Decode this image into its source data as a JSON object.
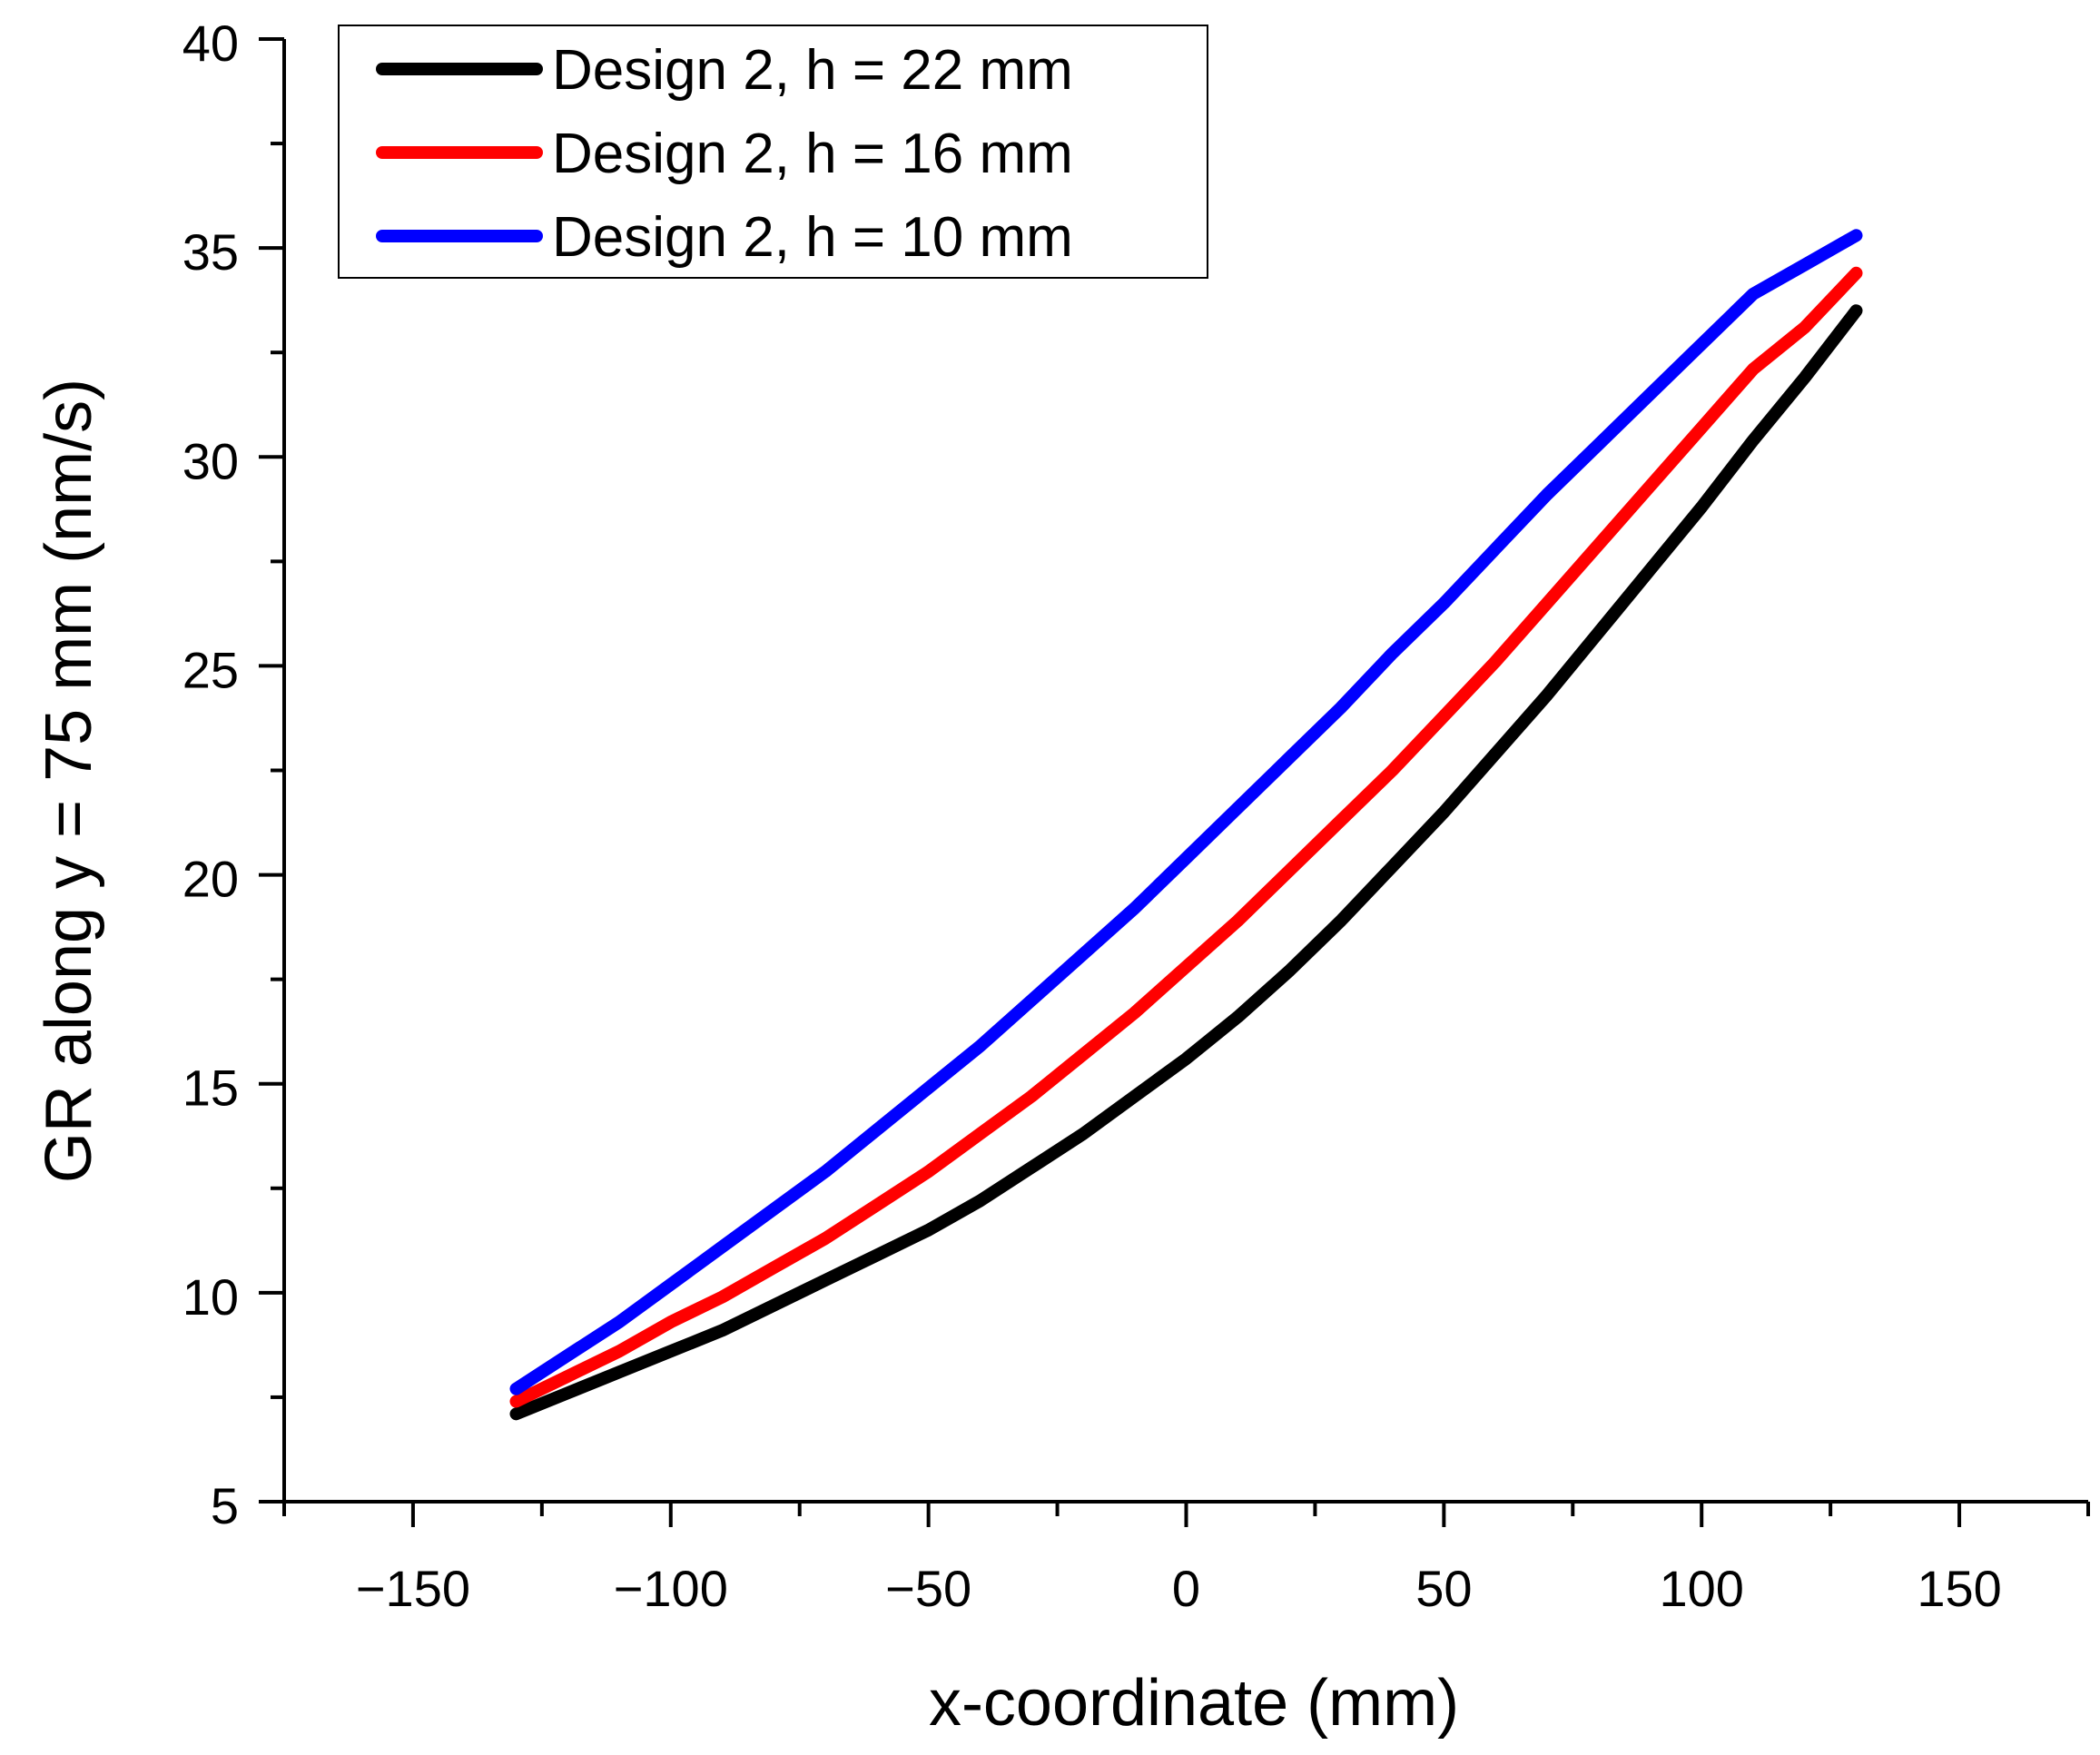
{
  "chart_data": {
    "type": "line",
    "title": "",
    "xlabel": "x-coordinate (mm)",
    "ylabel": "GR along y = 75 mm (nm/s)",
    "xlim": [
      -175,
      175
    ],
    "ylim": [
      5,
      40
    ],
    "xticks": [
      -150,
      -100,
      -50,
      0,
      50,
      100,
      150
    ],
    "xtick_labels": [
      "−150",
      "−100",
      "−50",
      "0",
      "50",
      "100",
      "150"
    ],
    "x_minor_step": 25,
    "yticks": [
      5,
      10,
      15,
      20,
      25,
      30,
      35,
      40
    ],
    "ytick_labels": [
      "5",
      "10",
      "15",
      "20",
      "25",
      "30",
      "35",
      "40"
    ],
    "y_minor_step": 2.5,
    "grid": false,
    "legend_position": "top-left",
    "x": [
      -130,
      -120,
      -110,
      -100,
      -90,
      -80,
      -70,
      -60,
      -50,
      -40,
      -30,
      -20,
      -10,
      0,
      10,
      20,
      30,
      40,
      50,
      60,
      70,
      80,
      90,
      100,
      110,
      120,
      130
    ],
    "series": [
      {
        "name": "Design 2, h = 22 mm",
        "color": "#000000",
        "values": [
          7.1,
          7.6,
          8.1,
          8.6,
          9.1,
          9.7,
          10.3,
          10.9,
          11.5,
          12.2,
          13.0,
          13.8,
          14.7,
          15.6,
          16.6,
          17.7,
          18.9,
          20.2,
          21.5,
          22.9,
          24.3,
          25.8,
          27.3,
          28.8,
          30.4,
          31.9,
          33.5
        ]
      },
      {
        "name": "Design 2, h = 16 mm",
        "color": "#ff0000",
        "values": [
          7.4,
          8.0,
          8.6,
          9.3,
          9.9,
          10.6,
          11.3,
          12.1,
          12.9,
          13.8,
          14.7,
          15.7,
          16.7,
          17.8,
          18.9,
          20.1,
          21.3,
          22.5,
          23.8,
          25.1,
          26.5,
          27.9,
          29.3,
          30.7,
          32.1,
          33.1,
          34.4
        ]
      },
      {
        "name": "Design 2, h = 10 mm",
        "color": "#0000ff",
        "values": [
          7.7,
          8.5,
          9.3,
          10.2,
          11.1,
          12.0,
          12.9,
          13.9,
          14.9,
          15.9,
          17.0,
          18.1,
          19.2,
          20.4,
          21.6,
          22.8,
          24.0,
          25.3,
          26.5,
          27.8,
          29.1,
          30.3,
          31.5,
          32.7,
          33.9,
          34.6,
          35.3
        ]
      }
    ]
  }
}
